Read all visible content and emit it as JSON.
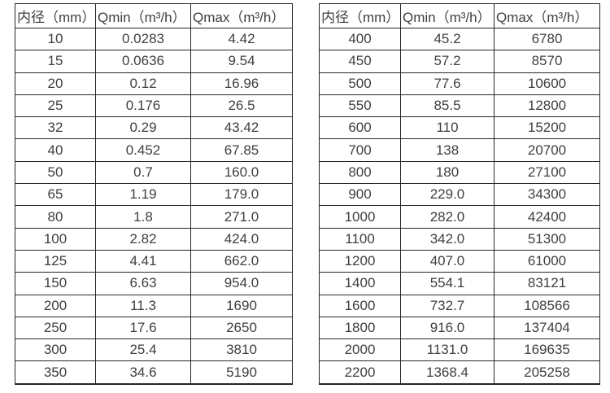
{
  "chart_data": [
    {
      "type": "table",
      "name": "small-diameter-flow-table",
      "headers": [
        "内径（mm）",
        "Qmin（m³/h）",
        "Qmax（m³/h）"
      ],
      "rows": [
        [
          "10",
          "0.0283",
          "4.42"
        ],
        [
          "15",
          "0.0636",
          "9.54"
        ],
        [
          "20",
          "0.12",
          "16.96"
        ],
        [
          "25",
          "0.176",
          "26.5"
        ],
        [
          "32",
          "0.29",
          "43.42"
        ],
        [
          "40",
          "0.452",
          "67.85"
        ],
        [
          "50",
          "0.7",
          "160.0"
        ],
        [
          "65",
          "1.19",
          "179.0"
        ],
        [
          "80",
          "1.8",
          "271.0"
        ],
        [
          "100",
          "2.82",
          "424.0"
        ],
        [
          "125",
          "4.41",
          "662.0"
        ],
        [
          "150",
          "6.63",
          "954.0"
        ],
        [
          "200",
          "11.3",
          "1690"
        ],
        [
          "250",
          "17.6",
          "2650"
        ],
        [
          "300",
          "25.4",
          "3810"
        ],
        [
          "350",
          "34.6",
          "5190"
        ]
      ]
    },
    {
      "type": "table",
      "name": "large-diameter-flow-table",
      "headers": [
        "内径（mm）",
        "Qmin（m³/h）",
        "Qmax（m³/h）"
      ],
      "rows": [
        [
          "400",
          "45.2",
          "6780"
        ],
        [
          "450",
          "57.2",
          "8570"
        ],
        [
          "500",
          "77.6",
          "10600"
        ],
        [
          "550",
          "85.5",
          "12800"
        ],
        [
          "600",
          "110",
          "15200"
        ],
        [
          "700",
          "138",
          "20700"
        ],
        [
          "800",
          "180",
          "27100"
        ],
        [
          "900",
          "229.0",
          "34300"
        ],
        [
          "1000",
          "282.0",
          "42400"
        ],
        [
          "1100",
          "342.0",
          "51300"
        ],
        [
          "1200",
          "407.0",
          "61000"
        ],
        [
          "1400",
          "554.1",
          "83121"
        ],
        [
          "1600",
          "732.7",
          "108566"
        ],
        [
          "1800",
          "916.0",
          "137404"
        ],
        [
          "2000",
          "1131.0",
          "169635"
        ],
        [
          "2200",
          "1368.4",
          "205258"
        ]
      ]
    }
  ],
  "colors": {
    "text": "#3f3f3f",
    "border": "#262626",
    "background": "#ffffff"
  }
}
